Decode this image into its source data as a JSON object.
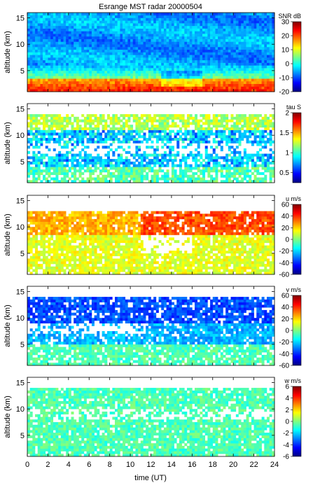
{
  "title": "Esrange MST radar 20000504",
  "chart_data": [
    {
      "type": "heatmap",
      "ylabel": "altitude (km)",
      "yticks": [
        5,
        10,
        15
      ],
      "ylim": [
        1,
        16
      ],
      "xlim": [
        0,
        24
      ],
      "colorbar": {
        "label": "SNR dB",
        "range": [
          -20,
          30
        ],
        "ticks": [
          -20,
          -10,
          0,
          10,
          20,
          30
        ]
      }
    },
    {
      "type": "heatmap",
      "ylabel": "altitude (km)",
      "yticks": [
        5,
        10,
        15
      ],
      "ylim": [
        1,
        16
      ],
      "xlim": [
        0,
        24
      ],
      "colorbar": {
        "label": "tau S",
        "range": [
          0.25,
          2
        ],
        "ticks": [
          0.5,
          1,
          1.5,
          2
        ]
      }
    },
    {
      "type": "heatmap",
      "ylabel": "altitude (km)",
      "yticks": [
        5,
        10,
        15
      ],
      "ylim": [
        1,
        16
      ],
      "xlim": [
        0,
        24
      ],
      "colorbar": {
        "label": "u m/s",
        "range": [
          -60,
          60
        ],
        "ticks": [
          -60,
          -40,
          -20,
          0,
          20,
          40,
          60
        ]
      }
    },
    {
      "type": "heatmap",
      "ylabel": "altitude (km)",
      "yticks": [
        5,
        10,
        15
      ],
      "ylim": [
        1,
        16
      ],
      "xlim": [
        0,
        24
      ],
      "colorbar": {
        "label": "v m/s",
        "range": [
          -60,
          60
        ],
        "ticks": [
          -60,
          -40,
          -20,
          0,
          20,
          40,
          60
        ]
      }
    },
    {
      "type": "heatmap",
      "ylabel": "altitude (km)",
      "yticks": [
        5,
        10,
        15
      ],
      "ylim": [
        1,
        16
      ],
      "xlim": [
        0,
        24
      ],
      "xlabel": "time (UT)",
      "xticks": [
        0,
        2,
        4,
        6,
        8,
        10,
        12,
        14,
        16,
        18,
        20,
        22,
        24
      ],
      "colorbar": {
        "label": "w m/s",
        "range": [
          -6,
          6
        ],
        "ticks": [
          -6,
          -4,
          -2,
          0,
          2,
          4,
          6
        ]
      }
    }
  ]
}
